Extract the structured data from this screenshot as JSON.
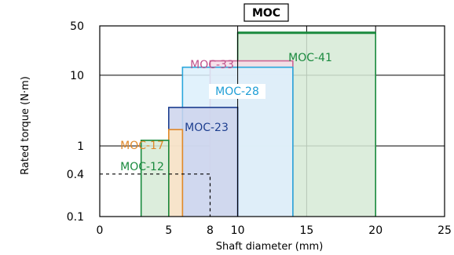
{
  "chart_data": {
    "type": "bar",
    "title": "MOC",
    "xlabel": "Shaft diameter (mm)",
    "ylabel": "Rated torque (N·m)",
    "xlim": [
      0,
      25
    ],
    "ylim": [
      0.1,
      50
    ],
    "yscale": "log",
    "xticks": [
      0,
      5,
      8,
      10,
      15,
      20,
      25
    ],
    "yticks": [
      0.1,
      0.4,
      1,
      10,
      50
    ],
    "xtick_labels": [
      "0",
      "5",
      "8",
      "10",
      "15",
      "20",
      "25"
    ],
    "ytick_labels": [
      "0.1",
      "0.4",
      "1",
      "10",
      "50"
    ],
    "grid": true,
    "series": [
      {
        "name": "MOC-41",
        "x_min": 10,
        "x_max": 20,
        "y_max": 40,
        "fill": "#d6ead6",
        "stroke": "#1a8a3e",
        "label_color": "#1a8a3e"
      },
      {
        "name": "MOC-33",
        "x_min": 8,
        "x_max": 14,
        "y_max": 16,
        "fill": "#f6dde8",
        "stroke": "#cc6696",
        "label_color": "#c0508a"
      },
      {
        "name": "MOC-28",
        "x_min": 6,
        "x_max": 14,
        "y_max": 13,
        "fill": "#dcf0fb",
        "stroke": "#2aa7dc",
        "label_color": "#1e9ed6"
      },
      {
        "name": "MOC-23",
        "x_min": 5,
        "x_max": 10,
        "y_max": 3.5,
        "fill": "#cdd4ec",
        "stroke": "#1d3e8f",
        "label_color": "#1d3e8f"
      },
      {
        "name": "MOC-17",
        "x_min": 5,
        "x_max": 6,
        "y_max": 1.7,
        "fill": "#fde5c4",
        "stroke": "#e0892a",
        "label_color": "#e0892a"
      },
      {
        "name": "MOC-12",
        "x_min": 3,
        "x_max": 5,
        "y_max": 1.2,
        "fill": "#d6ead6",
        "stroke": "#1a8a3e",
        "label_color": "#1a8a3e"
      }
    ],
    "annotation": {
      "x": 8,
      "y": 0.4,
      "style": "dashed"
    }
  }
}
